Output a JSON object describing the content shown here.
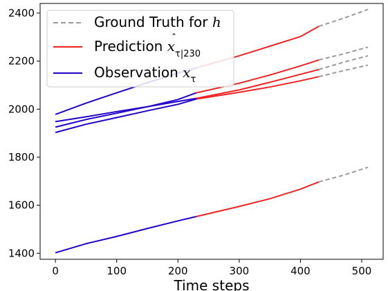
{
  "chart_data": {
    "type": "line",
    "xlabel": "Time steps",
    "ylabel": "",
    "xlim": [
      -25,
      535
    ],
    "ylim": [
      1375,
      2440
    ],
    "x_ticks": [
      0,
      100,
      200,
      300,
      400,
      500
    ],
    "y_ticks": [
      1400,
      1600,
      1800,
      2000,
      2200,
      2400
    ],
    "grid": false,
    "legend_position": "top-left",
    "legend": [
      {
        "label": "Ground Truth for h",
        "style": "dashed",
        "color": "#999999"
      },
      {
        "label": "Prediction x̂τ|230",
        "style": "solid",
        "color": "#ee2222"
      },
      {
        "label": "Observation xτ",
        "style": "solid",
        "color": "#2200cc"
      }
    ],
    "observation_range": [
      0,
      230
    ],
    "prediction_range": [
      230,
      430
    ],
    "ground_truth_range": [
      430,
      510
    ],
    "series": [
      {
        "points": [
          [
            0,
            1978
          ],
          [
            50,
            2025
          ],
          [
            100,
            2068
          ],
          [
            150,
            2110
          ],
          [
            200,
            2150
          ],
          [
            230,
            2172
          ],
          [
            300,
            2222
          ],
          [
            350,
            2262
          ],
          [
            400,
            2302
          ],
          [
            430,
            2345
          ],
          [
            470,
            2378
          ],
          [
            510,
            2415
          ]
        ]
      },
      {
        "points": [
          [
            0,
            1948
          ],
          [
            50,
            1968
          ],
          [
            100,
            1990
          ],
          [
            150,
            2010
          ],
          [
            200,
            2032
          ],
          [
            230,
            2045
          ],
          [
            300,
            2080
          ],
          [
            350,
            2112
          ],
          [
            400,
            2145
          ],
          [
            430,
            2165
          ],
          [
            470,
            2195
          ],
          [
            510,
            2222
          ]
        ]
      },
      {
        "points": [
          [
            0,
            1925
          ],
          [
            50,
            1957
          ],
          [
            100,
            1983
          ],
          [
            150,
            2010
          ],
          [
            200,
            2040
          ],
          [
            230,
            2068
          ],
          [
            300,
            2108
          ],
          [
            350,
            2142
          ],
          [
            400,
            2180
          ],
          [
            430,
            2205
          ],
          [
            470,
            2230
          ],
          [
            510,
            2258
          ]
        ]
      },
      {
        "points": [
          [
            0,
            1903
          ],
          [
            50,
            1937
          ],
          [
            100,
            1965
          ],
          [
            150,
            1993
          ],
          [
            200,
            2020
          ],
          [
            230,
            2042
          ],
          [
            300,
            2070
          ],
          [
            350,
            2092
          ],
          [
            400,
            2118
          ],
          [
            430,
            2135
          ],
          [
            470,
            2160
          ],
          [
            510,
            2183
          ]
        ]
      },
      {
        "points": [
          [
            0,
            1402
          ],
          [
            50,
            1440
          ],
          [
            100,
            1470
          ],
          [
            150,
            1503
          ],
          [
            200,
            1535
          ],
          [
            230,
            1553
          ],
          [
            300,
            1595
          ],
          [
            350,
            1627
          ],
          [
            400,
            1667
          ],
          [
            430,
            1697
          ],
          [
            470,
            1725
          ],
          [
            510,
            1758
          ]
        ]
      }
    ]
  },
  "colors": {
    "ground_truth": "#999999",
    "prediction": "#ee2222",
    "observation": "#2200cc",
    "axes": "#000000",
    "legend_border": "#cccccc"
  }
}
